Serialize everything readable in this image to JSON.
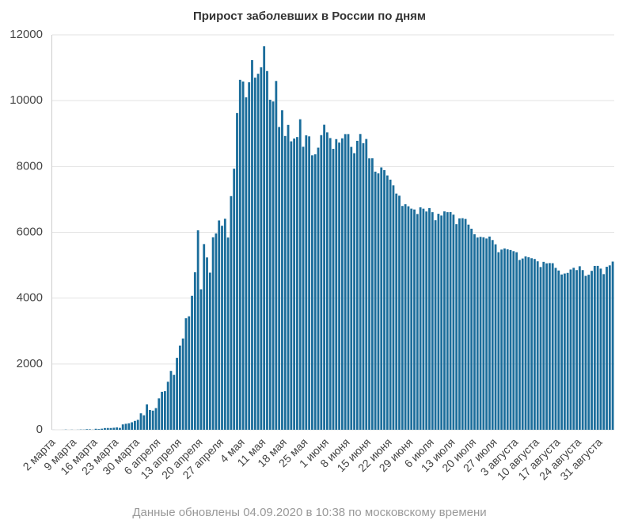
{
  "chart_data": {
    "type": "bar",
    "title": "Прирост заболевших в России по дням",
    "footnote": "Данные обновлены 04.09.2020 в 10:38 по московскому времени",
    "color": "#1b6d9b",
    "ylim": [
      0,
      12000
    ],
    "yticks": [
      0,
      2000,
      4000,
      6000,
      8000,
      10000,
      12000
    ],
    "grid": true,
    "categories": [
      "2 марта",
      null,
      null,
      null,
      null,
      null,
      null,
      "9 марта",
      null,
      null,
      null,
      null,
      null,
      null,
      "16 марта",
      null,
      null,
      null,
      null,
      null,
      null,
      "23 марта",
      null,
      null,
      null,
      null,
      null,
      null,
      "30 марта",
      null,
      null,
      null,
      null,
      null,
      null,
      "6 апреля",
      null,
      null,
      null,
      null,
      null,
      null,
      "13 апреля",
      null,
      null,
      null,
      null,
      null,
      null,
      "20 апреля",
      null,
      null,
      null,
      null,
      null,
      null,
      "27 апреля",
      null,
      null,
      null,
      null,
      null,
      null,
      "4 мая",
      null,
      null,
      null,
      null,
      null,
      null,
      "11 мая",
      null,
      null,
      null,
      null,
      null,
      null,
      "18 мая",
      null,
      null,
      null,
      null,
      null,
      null,
      "25 мая",
      null,
      null,
      null,
      null,
      null,
      null,
      "1 июня",
      null,
      null,
      null,
      null,
      null,
      null,
      "8 июня",
      null,
      null,
      null,
      null,
      null,
      null,
      "15 июня",
      null,
      null,
      null,
      null,
      null,
      null,
      "22 июня",
      null,
      null,
      null,
      null,
      null,
      null,
      "29 июня",
      null,
      null,
      null,
      null,
      null,
      null,
      "6 июля",
      null,
      null,
      null,
      null,
      null,
      null,
      "13 июля",
      null,
      null,
      null,
      null,
      null,
      null,
      "20 июля",
      null,
      null,
      null,
      null,
      null,
      null,
      "27 июля",
      null,
      null,
      null,
      null,
      null,
      null,
      "3 августа",
      null,
      null,
      null,
      null,
      null,
      null,
      "10 августа",
      null,
      null,
      null,
      null,
      null,
      null,
      "17 августа",
      null,
      null,
      null,
      null,
      null,
      null,
      "24 августа",
      null,
      null,
      null,
      null,
      null,
      null,
      "31 августа",
      null,
      null,
      null,
      null
    ],
    "values": [
      1,
      0,
      0,
      1,
      6,
      0,
      4,
      0,
      3,
      8,
      6,
      17,
      14,
      4,
      30,
      21,
      33,
      52,
      54,
      53,
      61,
      71,
      57,
      163,
      182,
      196,
      228,
      270,
      302,
      500,
      440,
      771,
      601,
      582,
      658,
      954,
      1154,
      1175,
      1459,
      1786,
      1667,
      2186,
      2558,
      2774,
      3388,
      3448,
      4070,
      4785,
      6060,
      4268,
      5642,
      5236,
      4774,
      5849,
      5966,
      6361,
      6198,
      6411,
      5841,
      7099,
      7933,
      9623,
      10633,
      10581,
      10102,
      10559,
      11231,
      10699,
      10817,
      11012,
      11656,
      10899,
      10028,
      9974,
      10598,
      9200,
      9709,
      8926,
      9263,
      8764,
      8849,
      8894,
      9434,
      8599,
      8946,
      8915,
      8338,
      8371,
      8572,
      8952,
      9268,
      9035,
      8863,
      8536,
      8831,
      8726,
      8855,
      8984,
      8985,
      8595,
      8404,
      8779,
      8987,
      8706,
      8835,
      8246,
      8248,
      7843,
      7790,
      7972,
      7889,
      7728,
      7600,
      7425,
      7176,
      7113,
      6800,
      6852,
      6791,
      6719,
      6693,
      6556,
      6760,
      6718,
      6632,
      6736,
      6611,
      6368,
      6562,
      6509,
      6635,
      6611,
      6615,
      6537,
      6248,
      6422,
      6428,
      6406,
      6234,
      6109,
      5940,
      5842,
      5862,
      5848,
      5811,
      5871,
      5765,
      5635,
      5395,
      5475,
      5509,
      5482,
      5462,
      5427,
      5394,
      5159,
      5204,
      5267,
      5241,
      5212,
      5189,
      5118,
      4945,
      5102,
      5057,
      5065,
      5061,
      4919,
      4839,
      4718,
      4748,
      4767,
      4870,
      4921,
      4852,
      4969,
      4852,
      4676,
      4711,
      4829,
      4979,
      4980,
      4897,
      4729,
      4952,
      4995,
      5110
    ]
  }
}
